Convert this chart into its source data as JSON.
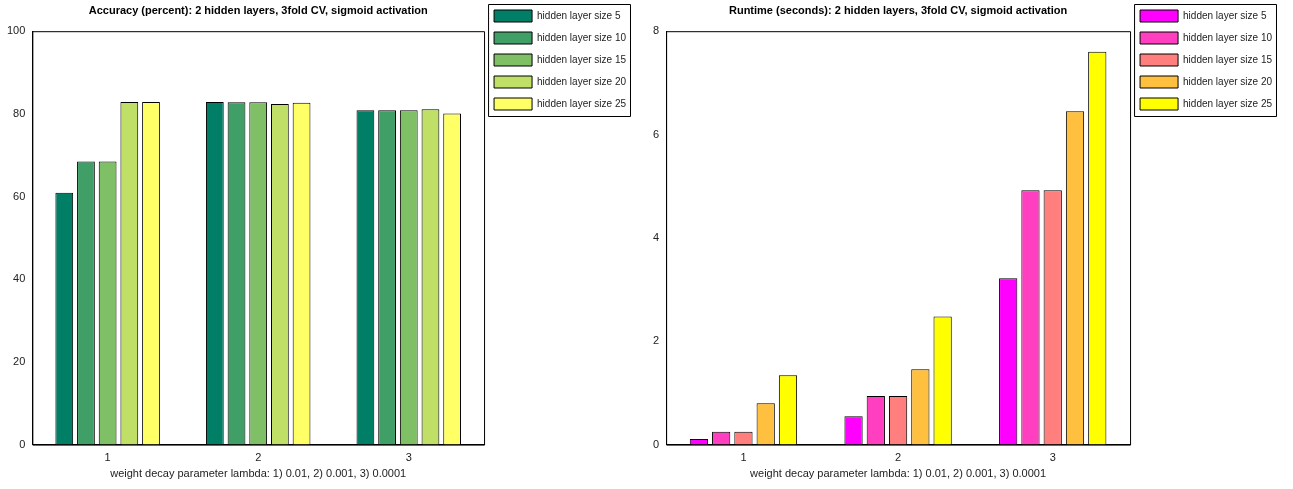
{
  "chart_data": [
    {
      "type": "bar",
      "title": "Accuracy (percent): 2 hidden layers, 3fold CV, sigmoid activation",
      "xlabel": "weight decay parameter lambda: 1) 0.01, 2) 0.001, 3) 0.0001",
      "categories": [
        "1",
        "2",
        "3"
      ],
      "ylim": [
        0,
        100
      ],
      "yticks": [
        0,
        20,
        40,
        60,
        80,
        100
      ],
      "grid": false,
      "legend": "top right",
      "series": [
        {
          "name": "hidden layer size 5",
          "color": "#007f66",
          "values": [
            60.9,
            82.9,
            80.9
          ]
        },
        {
          "name": "hidden layer size 10",
          "color": "#3f9f66",
          "values": [
            68.5,
            82.8,
            80.9
          ]
        },
        {
          "name": "hidden layer size 15",
          "color": "#7fbf66",
          "values": [
            68.5,
            82.8,
            80.9
          ]
        },
        {
          "name": "hidden layer size 20",
          "color": "#bfdf66",
          "values": [
            82.9,
            82.4,
            81.1
          ]
        },
        {
          "name": "hidden layer size 25",
          "color": "#ffff66",
          "values": [
            82.9,
            82.7,
            80.1
          ]
        }
      ]
    },
    {
      "type": "bar",
      "title": "Runtime (seconds): 2 hidden layers, 3fold CV, sigmoid activation",
      "xlabel": "weight decay parameter lambda: 1) 0.01, 2) 0.001, 3) 0.0001",
      "categories": [
        "1",
        "2",
        "3"
      ],
      "ylim": [
        0,
        8
      ],
      "yticks": [
        0,
        2,
        4,
        6,
        8
      ],
      "grid": false,
      "legend": "top right",
      "series": [
        {
          "name": "hidden layer size 5",
          "color": "#ff00ff",
          "values": [
            0.11,
            0.55,
            3.22
          ]
        },
        {
          "name": "hidden layer size 10",
          "color": "#ff3fbf",
          "values": [
            0.25,
            0.94,
            4.92
          ]
        },
        {
          "name": "hidden layer size 15",
          "color": "#ff7f7f",
          "values": [
            0.25,
            0.94,
            4.92
          ]
        },
        {
          "name": "hidden layer size 20",
          "color": "#ffbf3f",
          "values": [
            0.8,
            1.46,
            6.45
          ]
        },
        {
          "name": "hidden layer size 25",
          "color": "#ffff00",
          "values": [
            1.34,
            2.48,
            7.6
          ]
        }
      ]
    }
  ]
}
